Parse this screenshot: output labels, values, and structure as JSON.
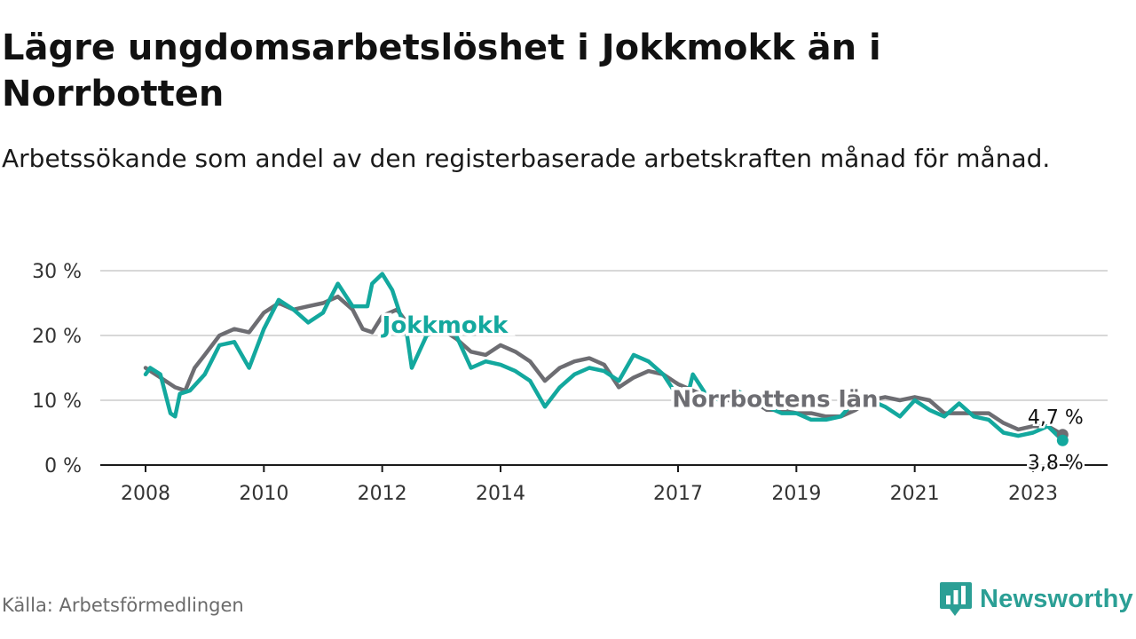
{
  "header": {
    "title": "Lägre ungdomsarbetslöshet i Jokkmokk än i Norrbotten",
    "subtitle": "Arbetssökande som andel av den registerbaserade arbetskraften månad för månad."
  },
  "footer": {
    "source": "Källa: Arbetsförmedlingen",
    "brand": "Newsworthy"
  },
  "colors": {
    "jokkmokk": "#13a89e",
    "norrbotten": "#6d6d72",
    "brand": "#2b9f95",
    "grid": "#d8d8d8"
  },
  "chart_data": {
    "type": "line",
    "title": "Lägre ungdomsarbetslöshet i Jokkmokk än i Norrbotten",
    "xlabel": "",
    "ylabel": "",
    "x_range": [
      2008,
      2023.6
    ],
    "ylim": [
      0,
      30
    ],
    "y_ticks": [
      0,
      10,
      20,
      30
    ],
    "y_tick_labels": [
      "0 %",
      "10 %",
      "20 %",
      "30 %"
    ],
    "x_ticks": [
      2008,
      2010,
      2012,
      2014,
      2017,
      2019,
      2021,
      2023
    ],
    "x_tick_labels": [
      "2008",
      "2010",
      "2012",
      "2014",
      "2017",
      "2019",
      "2021",
      "2023"
    ],
    "grid": true,
    "series": [
      {
        "name": "Norrbottens län",
        "color": "#6d6d72",
        "end_label": "4,7 %",
        "x": [
          2008.0,
          2008.25,
          2008.5,
          2008.67,
          2008.83,
          2009.0,
          2009.25,
          2009.5,
          2009.75,
          2010.0,
          2010.25,
          2010.5,
          2010.75,
          2011.0,
          2011.25,
          2011.5,
          2011.67,
          2011.83,
          2012.0,
          2012.25,
          2012.5,
          2012.75,
          2013.0,
          2013.25,
          2013.5,
          2013.75,
          2014.0,
          2014.25,
          2014.5,
          2014.75,
          2015.0,
          2015.25,
          2015.5,
          2015.75,
          2016.0,
          2016.25,
          2016.5,
          2016.75,
          2017.0,
          2017.25,
          2017.5,
          2017.75,
          2018.0,
          2018.25,
          2018.5,
          2018.75,
          2019.0,
          2019.25,
          2019.5,
          2019.75,
          2020.0,
          2020.25,
          2020.5,
          2020.75,
          2021.0,
          2021.25,
          2021.5,
          2021.75,
          2022.0,
          2022.25,
          2022.5,
          2022.75,
          2023.0,
          2023.25,
          2023.5
        ],
        "values": [
          15,
          13.5,
          12,
          11.5,
          15,
          17,
          20,
          21,
          20.5,
          23.5,
          25,
          24,
          24.5,
          25,
          26,
          24,
          21,
          20.5,
          23,
          24,
          21,
          20,
          21,
          19.5,
          17.5,
          17,
          18.5,
          17.5,
          16,
          13,
          15,
          16,
          16.5,
          15.5,
          12,
          13.5,
          14.5,
          14,
          12.5,
          11.5,
          10.5,
          10,
          10,
          10,
          8.5,
          8.5,
          8,
          8,
          7.5,
          7.5,
          8.5,
          10,
          10.5,
          10,
          10.5,
          10,
          8,
          8,
          8,
          8,
          6.5,
          5.5,
          6,
          6,
          4.7
        ]
      },
      {
        "name": "Jokkmokk",
        "color": "#13a89e",
        "end_label": "3,8 %",
        "x": [
          2008.0,
          2008.08,
          2008.25,
          2008.42,
          2008.5,
          2008.58,
          2008.75,
          2009.0,
          2009.25,
          2009.5,
          2009.75,
          2010.0,
          2010.25,
          2010.5,
          2010.75,
          2011.0,
          2011.08,
          2011.25,
          2011.5,
          2011.75,
          2011.83,
          2012.0,
          2012.17,
          2012.42,
          2012.5,
          2012.75,
          2013.0,
          2013.25,
          2013.5,
          2013.75,
          2014.0,
          2014.25,
          2014.5,
          2014.75,
          2015.0,
          2015.25,
          2015.5,
          2015.75,
          2016.0,
          2016.25,
          2016.5,
          2016.75,
          2017.0,
          2017.17,
          2017.25,
          2017.5,
          2017.75,
          2018.0,
          2018.25,
          2018.5,
          2018.75,
          2019.0,
          2019.25,
          2019.5,
          2019.75,
          2020.0,
          2020.25,
          2020.5,
          2020.75,
          2021.0,
          2021.25,
          2021.5,
          2021.75,
          2022.0,
          2022.25,
          2022.5,
          2022.75,
          2023.0,
          2023.25,
          2023.5
        ],
        "values": [
          14,
          15,
          14,
          8,
          7.5,
          11,
          11.5,
          14,
          18.5,
          19,
          15,
          21,
          25.5,
          24,
          22,
          23.5,
          25,
          28,
          24.5,
          24.5,
          28,
          29.5,
          27,
          20,
          15,
          20,
          21,
          20,
          15,
          16,
          15.5,
          14.5,
          13,
          9,
          12,
          14,
          15,
          14.5,
          13,
          17,
          16,
          14,
          10.5,
          11,
          14,
          10.5,
          10,
          11.5,
          10,
          9,
          8,
          8,
          7,
          7,
          7.5,
          10,
          10,
          9,
          7.5,
          10,
          8.5,
          7.5,
          9.5,
          7.5,
          7,
          5,
          4.5,
          5,
          6,
          3.8
        ]
      }
    ],
    "annotations": [
      {
        "text": "Jokkmokk",
        "series": "Jokkmokk"
      },
      {
        "text": "Norrbottens län",
        "series": "Norrbottens län"
      }
    ]
  }
}
